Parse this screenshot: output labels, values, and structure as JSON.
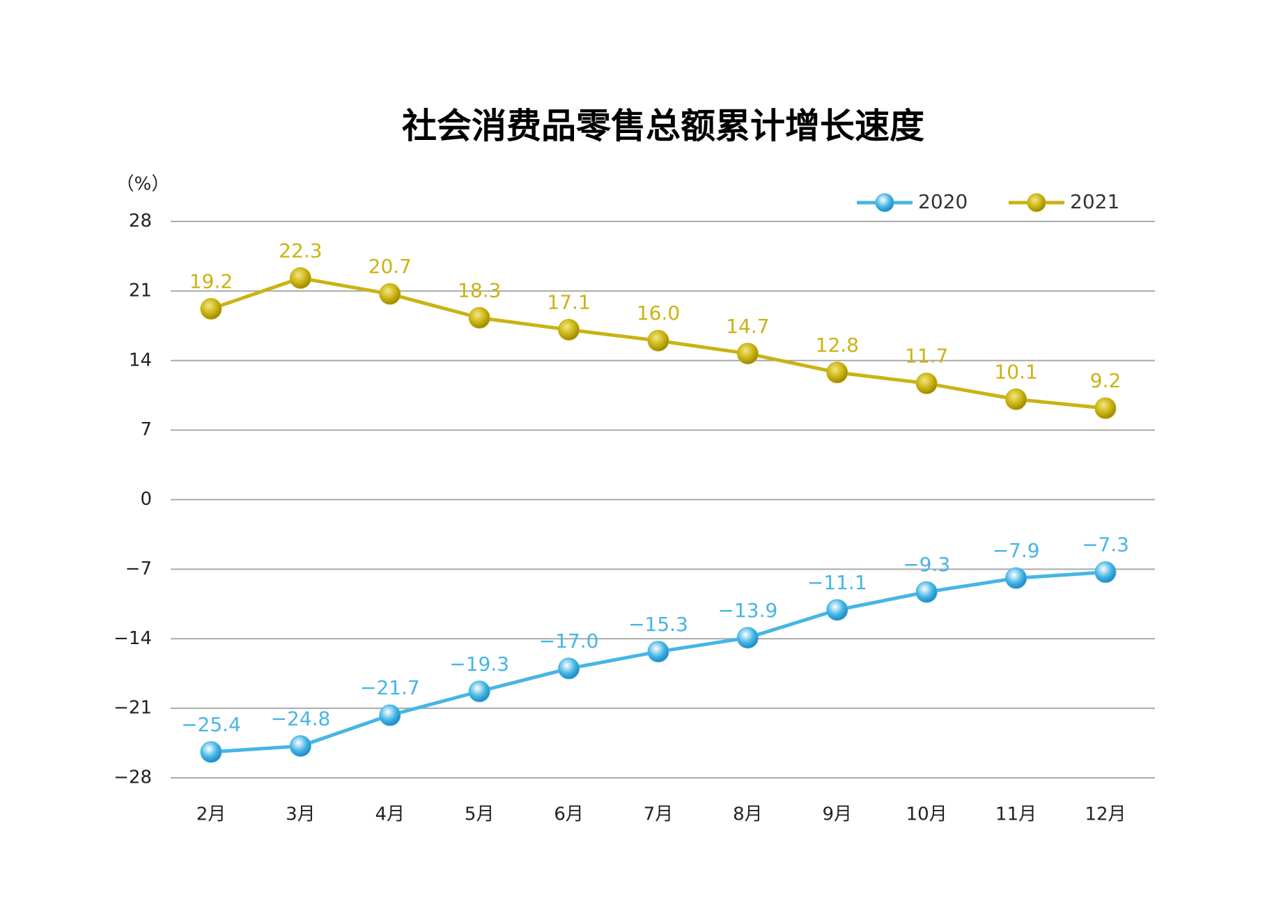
{
  "chart_data": {
    "type": "line",
    "title": "社会消费品零售总额累计增长速度",
    "y_label": "（%）",
    "categories": [
      "2月",
      "3月",
      "4月",
      "5月",
      "6月",
      "7月",
      "8月",
      "9月",
      "10月",
      "11月",
      "12月"
    ],
    "series": [
      {
        "name": "2020",
        "color": "#45b5e6",
        "values": [
          -25.4,
          -24.8,
          -21.7,
          -19.3,
          -17.0,
          -15.3,
          -13.9,
          -11.1,
          -9.3,
          -7.9,
          -7.3
        ],
        "value_labels": [
          "−25.4",
          "−24.8",
          "−21.7",
          "−19.3",
          "−17.0",
          "−15.3",
          "−13.9",
          "−11.1",
          "−9.3",
          "−7.9",
          "−7.3"
        ]
      },
      {
        "name": "2021",
        "color": "#c9b312",
        "values": [
          19.2,
          22.3,
          20.7,
          18.3,
          17.1,
          16.0,
          14.7,
          12.8,
          11.7,
          10.1,
          9.2
        ],
        "value_labels": [
          "19.2",
          "22.3",
          "20.7",
          "18.3",
          "17.1",
          "16.0",
          "14.7",
          "12.8",
          "11.7",
          "10.1",
          "9.2"
        ]
      }
    ],
    "ylim": [
      -28,
      28
    ],
    "yticks": [
      {
        "value": -28,
        "label": "−28"
      },
      {
        "value": -21,
        "label": "−21"
      },
      {
        "value": -14,
        "label": "−14"
      },
      {
        "value": -7,
        "label": "−7"
      },
      0,
      7,
      14,
      21,
      28
    ],
    "grid": true,
    "legend": "top-right"
  }
}
